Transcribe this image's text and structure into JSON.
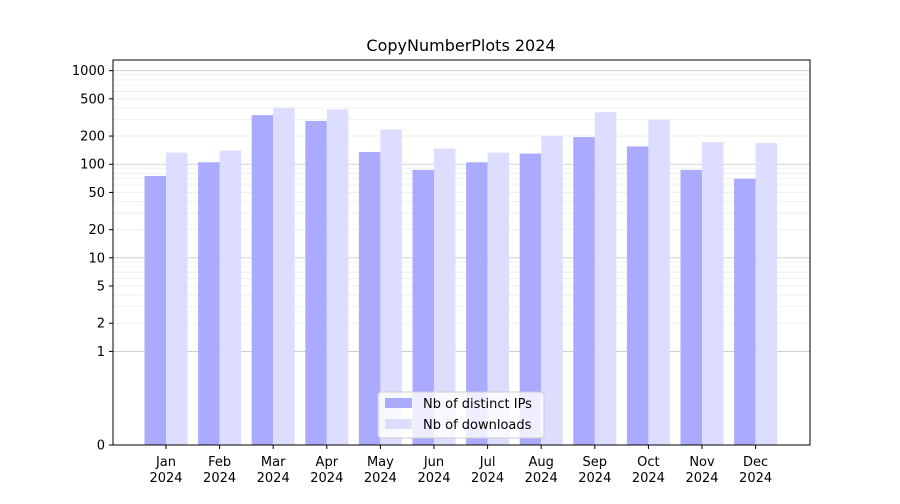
{
  "chart_data": {
    "type": "bar",
    "title": "CopyNumberPlots 2024",
    "xlabel": "",
    "ylabel": "",
    "yscale": "symlog",
    "ylim": [
      0,
      1300
    ],
    "categories": [
      {
        "month": "Jan",
        "year": "2024"
      },
      {
        "month": "Feb",
        "year": "2024"
      },
      {
        "month": "Mar",
        "year": "2024"
      },
      {
        "month": "Apr",
        "year": "2024"
      },
      {
        "month": "May",
        "year": "2024"
      },
      {
        "month": "Jun",
        "year": "2024"
      },
      {
        "month": "Jul",
        "year": "2024"
      },
      {
        "month": "Aug",
        "year": "2024"
      },
      {
        "month": "Sep",
        "year": "2024"
      },
      {
        "month": "Oct",
        "year": "2024"
      },
      {
        "month": "Nov",
        "year": "2024"
      },
      {
        "month": "Dec",
        "year": "2024"
      }
    ],
    "series": [
      {
        "name": "Nb of distinct IPs",
        "color": "#aaaaff",
        "values": [
          75,
          105,
          335,
          290,
          135,
          87,
          105,
          130,
          195,
          155,
          87,
          70
        ]
      },
      {
        "name": "Nb of downloads",
        "color": "#ddddff",
        "values": [
          133,
          140,
          400,
          385,
          235,
          147,
          133,
          200,
          360,
          300,
          172,
          168
        ]
      }
    ],
    "yticks": [
      "0",
      "1",
      "2",
      "5",
      "10",
      "20",
      "50",
      "100",
      "200",
      "500",
      "1000"
    ],
    "grid": "horizontal (major and minor)",
    "legend_position": "bottom-center"
  }
}
